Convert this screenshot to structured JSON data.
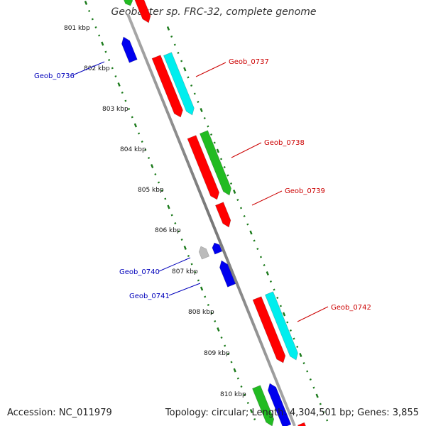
{
  "title": "Geobacter sp. FRC-32, complete genome",
  "footer": {
    "accession": "Accession: NC_011979",
    "summary": "Topology: circular; Length: 4,304,501 bp; Genes: 3,855"
  },
  "colors": {
    "forward_cds": "#ff0000",
    "reverse_cds": "#0000ee",
    "forward_rna": "#22bb22",
    "forward_other": "#00eeee",
    "reverse_other": "#bbbbbb",
    "backbone": "#888888",
    "tick": "#1a7a1a",
    "label_forward": "#cc0000",
    "label_reverse": "#0000bb"
  },
  "axis": {
    "tick_labels": [
      "801 kbp",
      "802 kbp",
      "803 kbp",
      "804 kbp",
      "805 kbp",
      "806 kbp",
      "807 kbp",
      "808 kbp",
      "809 kbp",
      "810 kbp"
    ]
  },
  "gene_labels": {
    "forward": [
      "Geob_0737",
      "Geob_0738",
      "Geob_0739",
      "Geob_0742"
    ],
    "reverse": [
      "Geob_0736",
      "Geob_0740",
      "Geob_0741"
    ]
  }
}
